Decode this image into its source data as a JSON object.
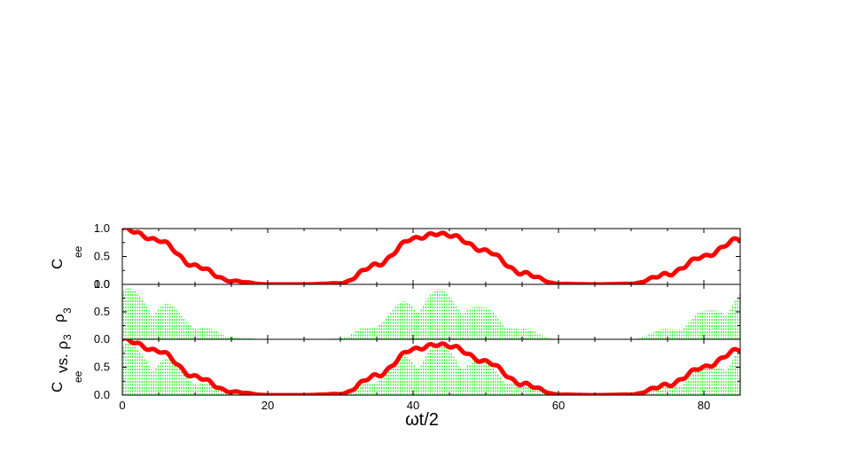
{
  "chart_data": [
    {
      "type": "line",
      "xlim": [
        0,
        85
      ],
      "ylim": [
        0,
        1.0
      ],
      "yticks": [
        "0.0",
        "0.5",
        "1.0"
      ],
      "ylabel": {
        "main": "C",
        "sub": "ee"
      },
      "series": [
        {
          "color": "#ff0000",
          "x": [
            0,
            5,
            10,
            15,
            20,
            25,
            30,
            35,
            40,
            43.5,
            45,
            50,
            55,
            60,
            65,
            70,
            75,
            80,
            85
          ],
          "values": [
            1.0,
            0.79,
            0.33,
            0.06,
            0.0,
            0.0,
            0.02,
            0.35,
            0.82,
            0.91,
            0.88,
            0.6,
            0.2,
            0.01,
            0.0,
            0.01,
            0.18,
            0.5,
            0.82
          ]
        }
      ]
    },
    {
      "type": "bar",
      "xlim": [
        0,
        85
      ],
      "ylim": [
        0,
        1.0
      ],
      "yticks": [
        "0.0",
        "0.5",
        "1.0"
      ],
      "ylabel": {
        "main": "ρ",
        "sub": "3"
      },
      "series": [
        {
          "color": "#00ee00",
          "x": [
            0,
            5,
            10,
            15,
            20,
            25,
            30,
            35,
            40,
            43.5,
            45,
            50,
            55,
            60,
            65,
            70,
            75,
            80,
            85
          ],
          "envelope": [
            0.95,
            0.75,
            0.32,
            0.05,
            0.0,
            0.0,
            0.02,
            0.35,
            0.82,
            0.92,
            0.88,
            0.58,
            0.2,
            0.01,
            0.0,
            0.01,
            0.2,
            0.52,
            0.88
          ]
        }
      ]
    },
    {
      "type": "line",
      "xlim": [
        0,
        85
      ],
      "ylim": [
        0,
        1.0
      ],
      "yticks": [
        "0.0",
        "0.5"
      ],
      "xticks": [
        "0",
        "20",
        "40",
        "60",
        "80"
      ],
      "xlabel": "ωt/2",
      "ylabel": {
        "main": "C",
        "sub": "ee",
        "mid": " vs. ρ",
        "sub2": "3"
      },
      "series": [
        {
          "color": "#00ee00",
          "ref": "ρ3"
        },
        {
          "color": "#ff0000",
          "ref": "Cee"
        }
      ]
    }
  ]
}
